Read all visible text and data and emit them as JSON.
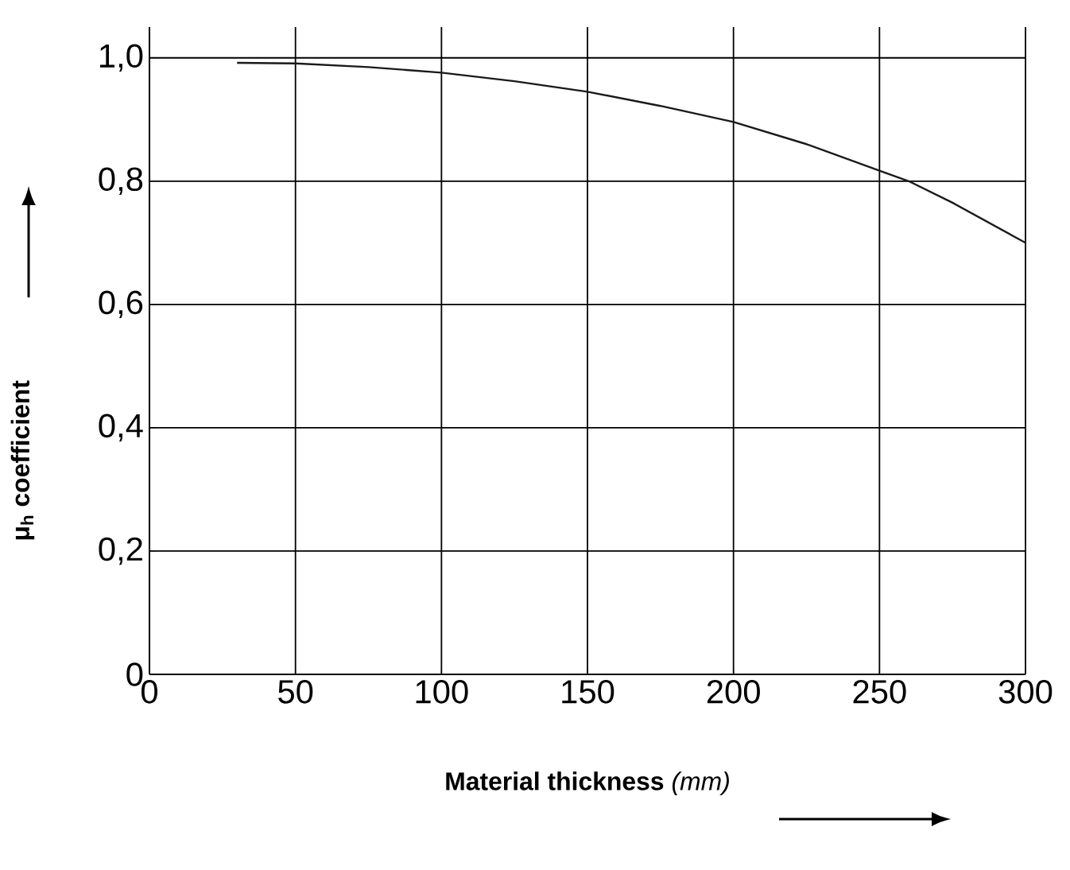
{
  "chart_data": {
    "type": "line",
    "xlabel": "**Material thickness** *(mm)*",
    "ylabel": "μ$_{h}$ coefficient",
    "x": [
      30,
      50,
      75,
      100,
      125,
      150,
      175,
      200,
      225,
      250,
      260,
      275,
      300
    ],
    "series": [
      {
        "color": "#1a1a1a",
        "values": [
          0.992,
          0.991,
          0.985,
          0.976,
          0.962,
          0.945,
          0.922,
          0.896,
          0.86,
          0.817,
          0.8,
          0.765,
          0.7
        ]
      }
    ],
    "xlim": [
      0,
      300
    ],
    "ylim": [
      0,
      1.05
    ],
    "xticks": [
      0,
      50,
      100,
      150,
      200,
      250,
      300
    ],
    "yticks": [
      {
        "value": 0,
        "label": "0"
      },
      {
        "value": 0.2,
        "label": "0,2"
      },
      {
        "value": 0.4,
        "label": "0,4"
      },
      {
        "value": 0.6,
        "label": "0,6"
      },
      {
        "value": 0.8,
        "label": "0,8"
      },
      {
        "value": 1.0,
        "label": "1,0"
      }
    ],
    "grid": true,
    "marker": "none",
    "line_style": "solid"
  }
}
